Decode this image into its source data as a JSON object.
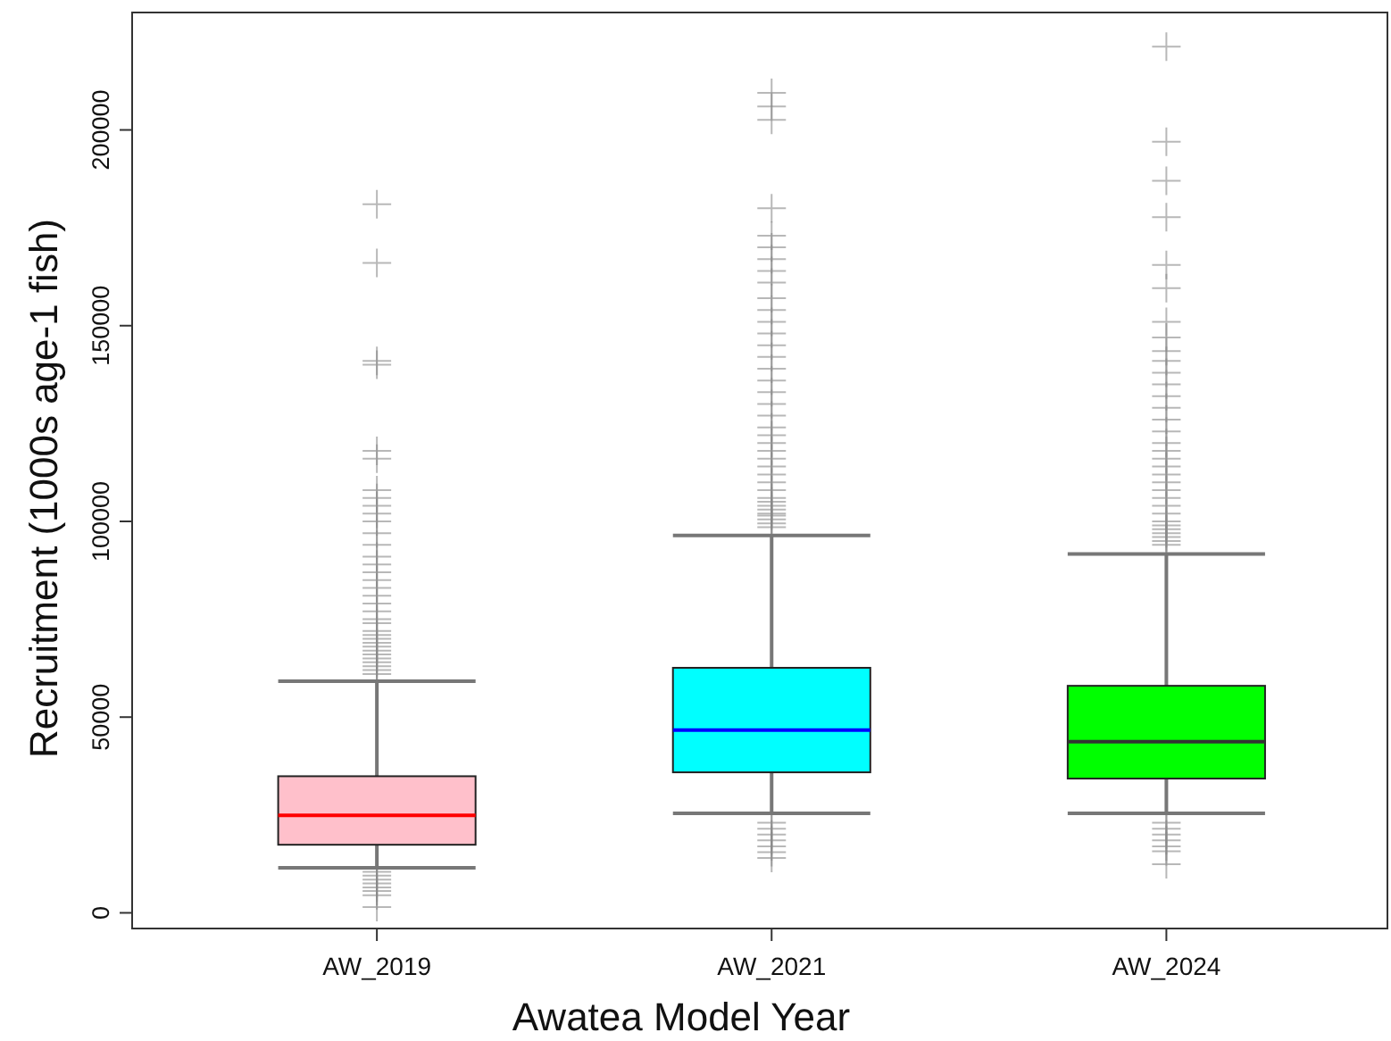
{
  "chart_data": {
    "type": "box",
    "xlabel": "Awatea Model Year",
    "ylabel": "Recruitment (1000s age-1 fish)",
    "categories": [
      "AW_2019",
      "AW_2021",
      "AW_2024"
    ],
    "colors": [
      "#ffc0cb",
      "#00ffff",
      "#00ff00"
    ],
    "marker": "cross",
    "ylim": [
      -4000,
      230000
    ],
    "yticks": [
      0,
      50000,
      100000,
      150000,
      200000
    ],
    "boxes": [
      {
        "low": 11500,
        "q1": 17400,
        "median": 24900,
        "q3": 34900,
        "high": 59200,
        "outliers": [
          1500,
          4500,
          5600,
          6500,
          7500,
          8500,
          9500,
          10500,
          61000,
          62000,
          63000,
          64000,
          65000,
          66000,
          67000,
          68000,
          69000,
          70000,
          71000,
          72000,
          74000,
          75000,
          77000,
          79000,
          81000,
          83000,
          85000,
          87000,
          89000,
          91000,
          94000,
          97000,
          100000,
          102000,
          104000,
          106000,
          108000,
          116000,
          118000,
          140000,
          141000,
          166000,
          181000
        ]
      },
      {
        "low": 25400,
        "q1": 35900,
        "median": 46700,
        "q3": 62600,
        "high": 96400,
        "outliers": [
          14000,
          15500,
          17000,
          18500,
          20000,
          21500,
          23000,
          98500,
          99500,
          100500,
          101500,
          102000,
          103000,
          104000,
          105000,
          106000,
          108000,
          110000,
          112000,
          114000,
          116000,
          118000,
          120000,
          122000,
          124000,
          127000,
          130000,
          133000,
          136000,
          139000,
          142000,
          145000,
          148000,
          151000,
          154000,
          157000,
          161000,
          164000,
          167000,
          170000,
          173000,
          180000,
          202600,
          206000,
          209500
        ]
      },
      {
        "low": 25400,
        "q1": 34300,
        "median": 43700,
        "q3": 58000,
        "high": 91700,
        "outliers": [
          12400,
          15700,
          17000,
          18500,
          20000,
          21500,
          23000,
          94000,
          95000,
          96000,
          97000,
          98000,
          99000,
          100000,
          102000,
          104000,
          106000,
          108000,
          110000,
          112000,
          114000,
          116000,
          118000,
          120000,
          123000,
          126000,
          129000,
          132000,
          135000,
          138000,
          141000,
          143500,
          147000,
          151000,
          159600,
          165500,
          177700,
          187000,
          197000,
          221300
        ]
      }
    ]
  }
}
